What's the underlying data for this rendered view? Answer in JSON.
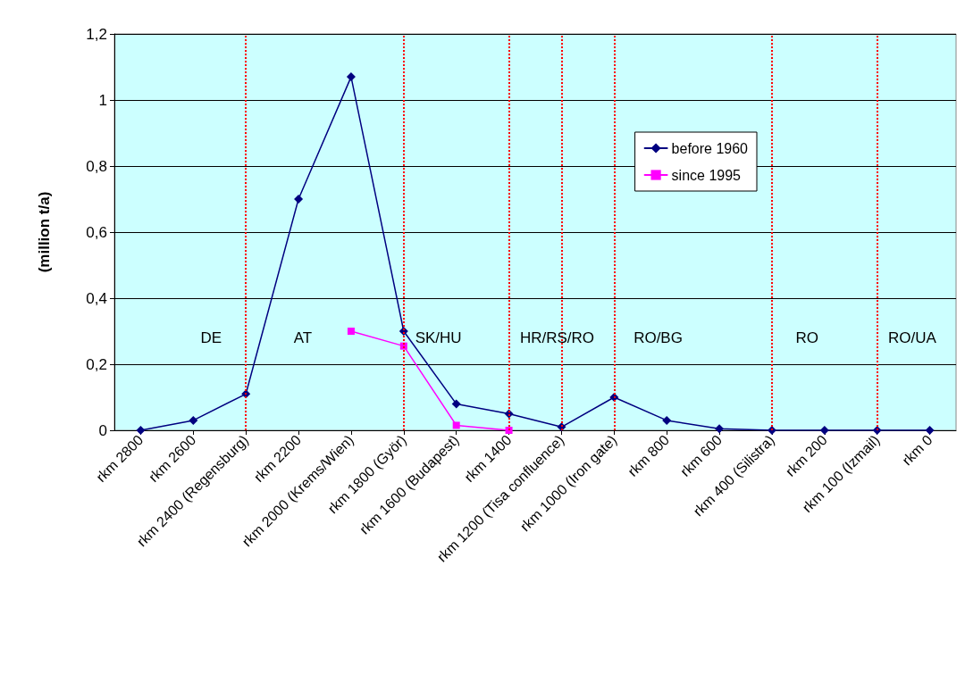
{
  "chart_data": {
    "type": "line",
    "ylabel": "(million t/a)",
    "categories": [
      "rkm 2800",
      "rkm 2600",
      "rkm 2400 (Regensburg)",
      "rkm 2200",
      "rkm 2000 (Krems/Wien)",
      "rkm 1800 (Györ)",
      "rkm 1600 (Budapest)",
      "rkm 1400",
      "rkm 1200 (Tisa confluence)",
      "rkm 1000 (Iron gate)",
      "rkm 800",
      "rkm 600",
      "rkm 400 (Silistra)",
      "rkm 200",
      "rkm 100 (Izmail)",
      "rkm 0"
    ],
    "series": [
      {
        "name": "before 1960",
        "color": "#000080",
        "marker": "diamond",
        "values": [
          0,
          0.03,
          0.11,
          0.7,
          1.07,
          0.3,
          0.08,
          0.05,
          0.01,
          0.1,
          0.03,
          0.005,
          0,
          0,
          0,
          0
        ]
      },
      {
        "name": "since 1995",
        "color": "#ff00ff",
        "marker": "square",
        "values": [
          null,
          null,
          null,
          null,
          0.3,
          0.255,
          0.015,
          0,
          null,
          null,
          null,
          null,
          null,
          null,
          null,
          null
        ]
      }
    ],
    "ylim": [
      0,
      1.2
    ],
    "yticks": [
      0,
      {
        "value": 0.2,
        "label": "0,2"
      },
      {
        "value": 0.4,
        "label": "0,4"
      },
      {
        "value": 0.6,
        "label": "0,6"
      },
      {
        "value": 0.8,
        "label": "0,8"
      },
      1,
      {
        "value": 1.2,
        "label": "1,2"
      }
    ],
    "grid": "y",
    "legend": "top right",
    "line_style": "solid",
    "ref_lines": [
      {
        "axis": "x",
        "value": "rkm 2400 (Regensburg)",
        "color": "#ff0000",
        "line_style": "dotted"
      },
      {
        "axis": "x",
        "value": "rkm 1800 (Györ)",
        "color": "#ff0000",
        "line_style": "dotted"
      },
      {
        "axis": "x",
        "value": "rkm 1400",
        "color": "#ff0000",
        "line_style": "dotted"
      },
      {
        "axis": "x",
        "value": "rkm 1200 (Tisa confluence)",
        "color": "#ff0000",
        "line_style": "dotted"
      },
      {
        "axis": "x",
        "value": "rkm 1000 (Iron gate)",
        "color": "#ff0000",
        "line_style": "dotted"
      },
      {
        "axis": "x",
        "value": "rkm 400 (Silistra)",
        "color": "#ff0000",
        "line_style": "dotted"
      },
      {
        "axis": "x",
        "value": "rkm 100 (Izmail)",
        "color": "#ff0000",
        "line_style": "dotted"
      }
    ],
    "annotations": [
      "DE",
      "AT",
      "SK/HU",
      "HR/RS/RO",
      "RO/BG",
      "RO",
      "RO/UA"
    ]
  }
}
